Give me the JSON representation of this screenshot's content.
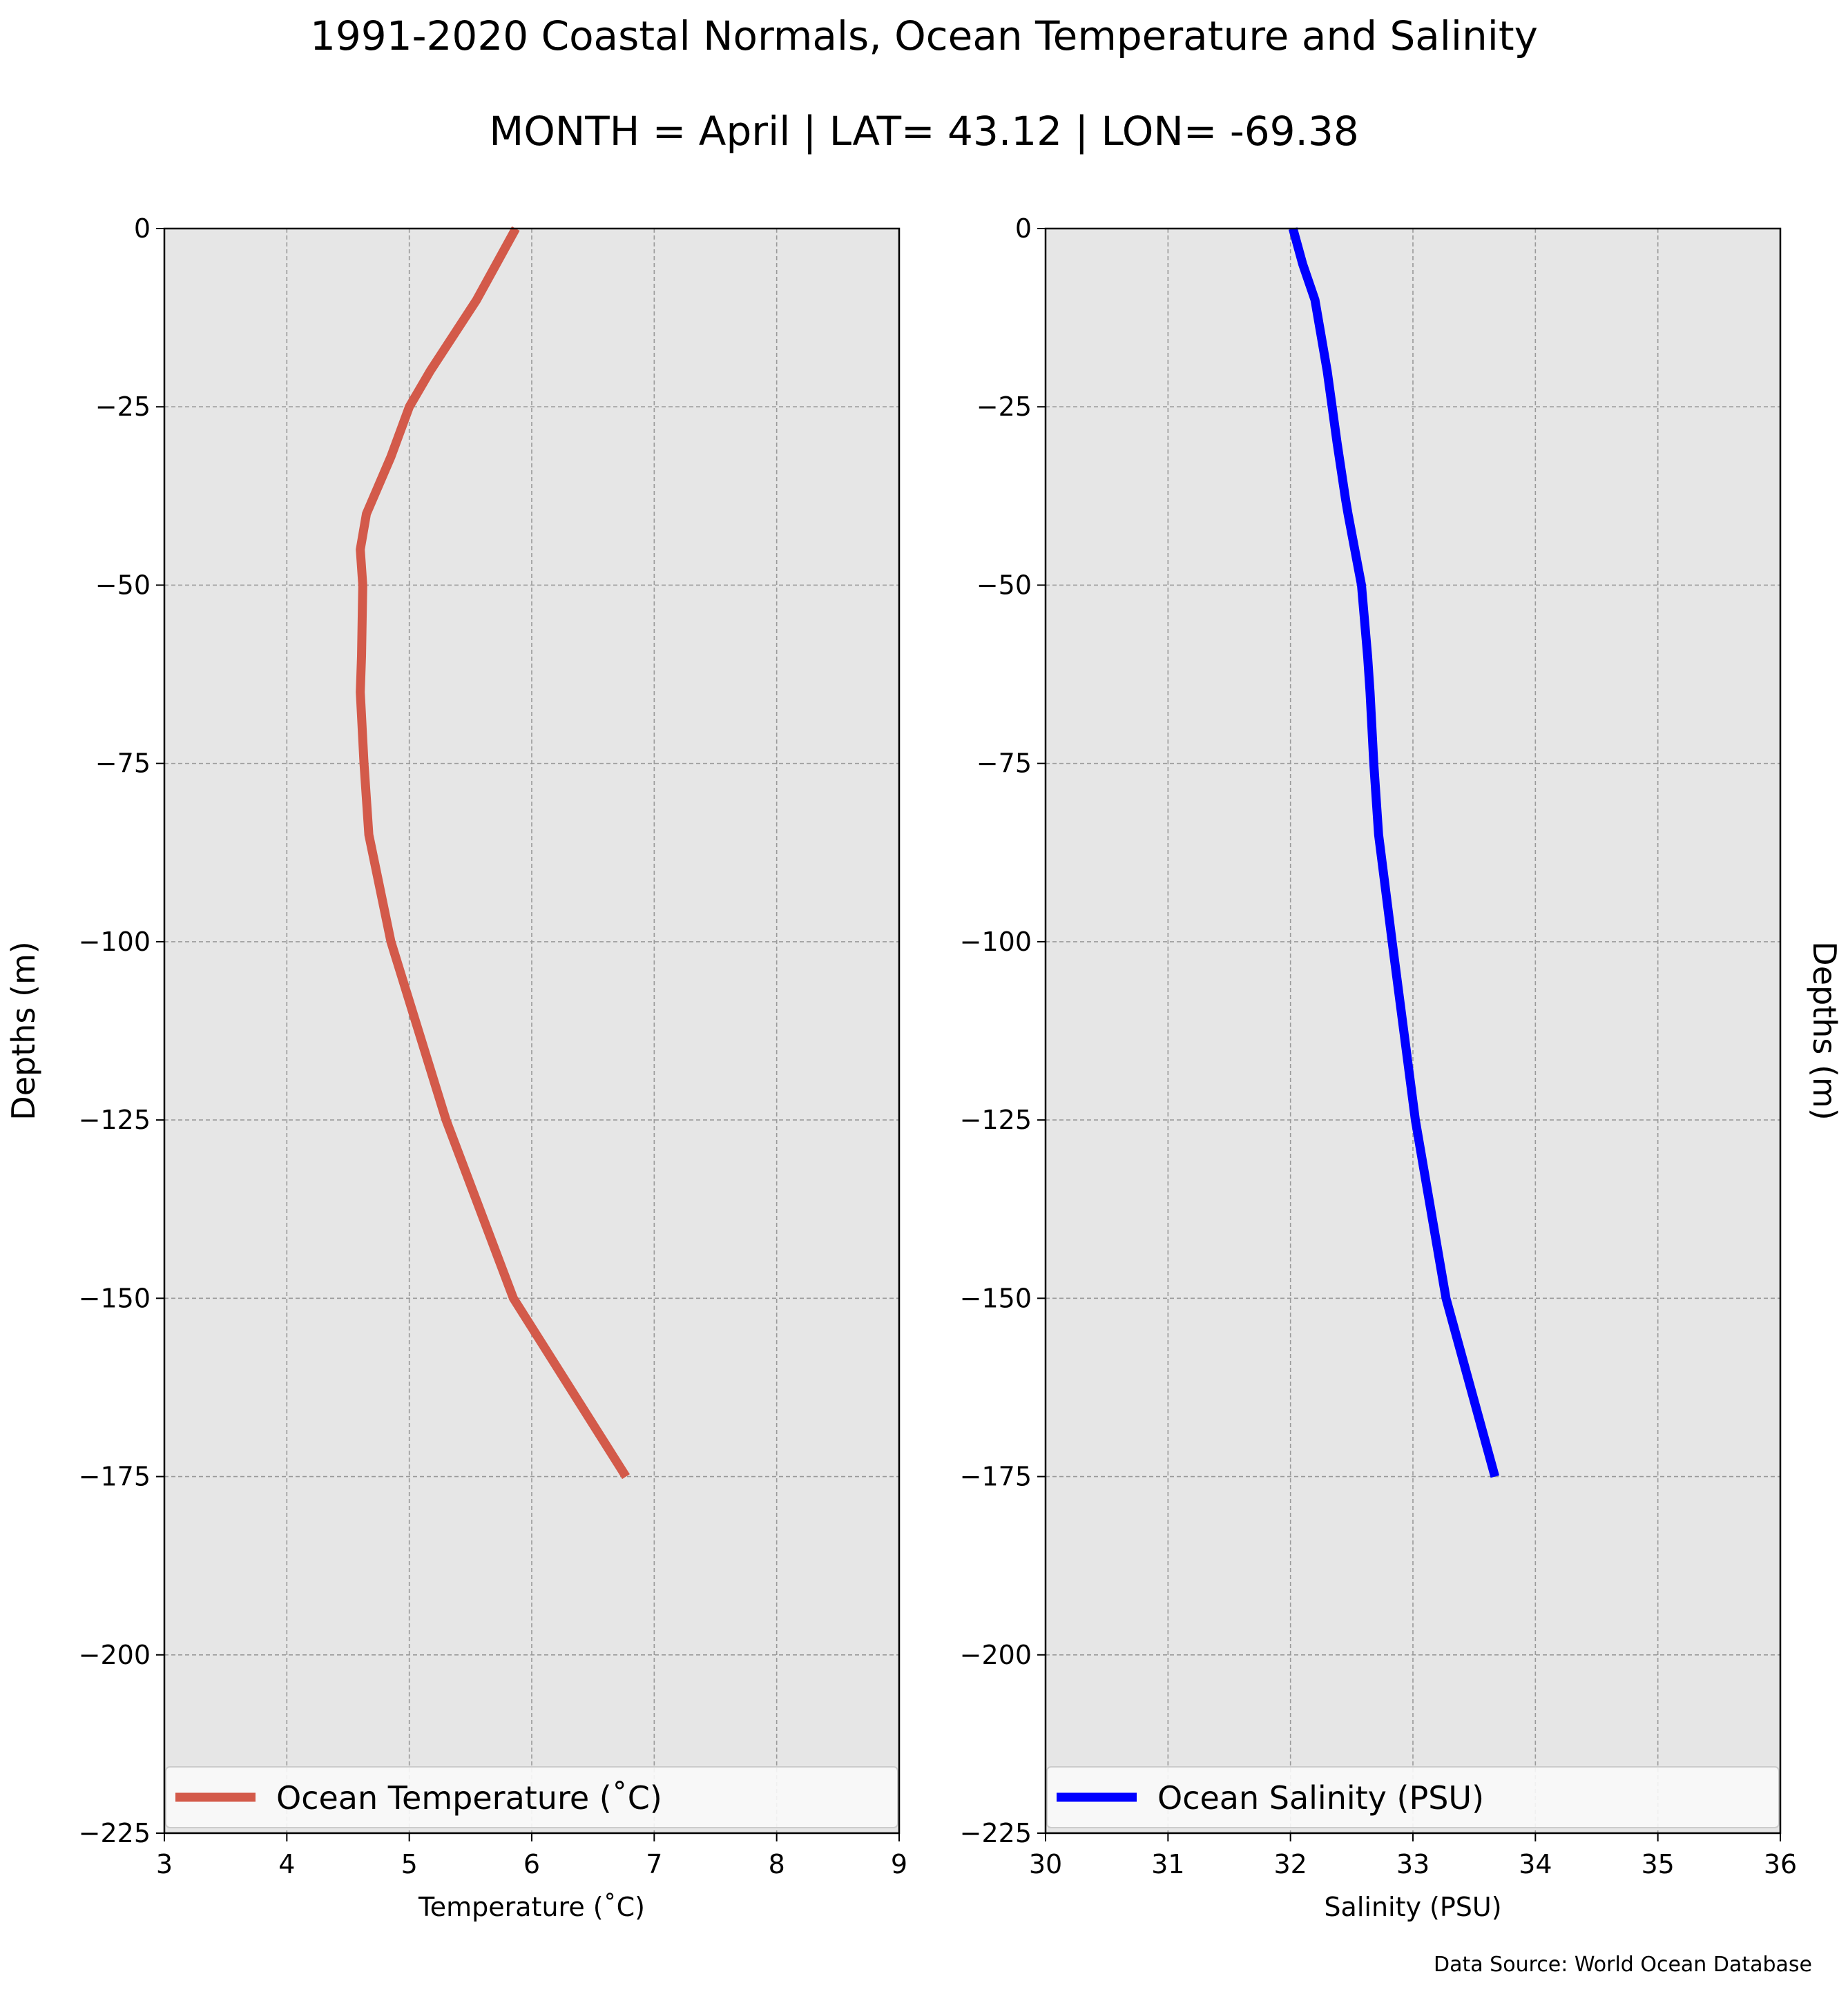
{
  "title": "1991-2020 Coastal Normals, Ocean Temperature and Salinity",
  "subtitle": "MONTH = April | LAT= 43.12 | LON= -69.38",
  "source": "Data Source: World Ocean Database",
  "colors": {
    "temperature": "#d35a4a",
    "salinity": "#0000ff",
    "plot_bg": "#e6e6e6",
    "grid": "#9a9a9a"
  },
  "chart_data": [
    {
      "type": "line",
      "xlabel": "Temperature ($^\\circ$C)",
      "xlabel_display": "Temperature (˚C)",
      "ylabel": "Depths (m)",
      "xlim": [
        3,
        9
      ],
      "ylim": [
        -225,
        0
      ],
      "xticks": [
        3,
        4,
        5,
        6,
        7,
        8,
        9
      ],
      "yticks": [
        0,
        -25,
        -50,
        -75,
        -100,
        -125,
        -150,
        -175,
        -200,
        -225
      ],
      "ytick_labels": [
        "0",
        "−25",
        "−50",
        "−75",
        "−100",
        "−125",
        "−150",
        "−175",
        "−200",
        "−225"
      ],
      "grid": true,
      "legend_position": "lower center",
      "series": [
        {
          "name": "Ocean Temperature (˚C)",
          "color": "#d35a4a",
          "x": [
            5.87,
            5.55,
            5.17,
            5.0,
            4.85,
            4.65,
            4.6,
            4.62,
            4.61,
            4.6,
            4.63,
            4.67,
            4.85,
            5.3,
            5.85,
            6.77
          ],
          "y": [
            0,
            -10,
            -20,
            -25,
            -32,
            -40,
            -45,
            -50,
            -60,
            -65,
            -75,
            -85,
            -100,
            -125,
            -150,
            -175
          ]
        }
      ]
    },
    {
      "type": "line",
      "xlabel": "Salinity (PSU)",
      "ylabel": "Depths (m)",
      "xlim": [
        30,
        36
      ],
      "ylim": [
        -225,
        0
      ],
      "xticks": [
        30,
        31,
        32,
        33,
        34,
        35,
        36
      ],
      "yticks": [
        0,
        -25,
        -50,
        -75,
        -100,
        -125,
        -150,
        -175,
        -200,
        -225
      ],
      "ytick_labels": [
        "0",
        "−25",
        "−50",
        "−75",
        "−100",
        "−125",
        "−150",
        "−175",
        "−200",
        "−225"
      ],
      "grid": true,
      "legend_position": "lower center",
      "series": [
        {
          "name": "Ocean Salinity (PSU)",
          "color": "#0000ff",
          "x": [
            32.02,
            32.1,
            32.2,
            32.3,
            32.38,
            32.45,
            32.47,
            32.58,
            32.63,
            32.65,
            32.68,
            32.72,
            32.83,
            33.02,
            33.27,
            33.67
          ],
          "y": [
            0,
            -5,
            -10,
            -20,
            -30,
            -38,
            -40,
            -50,
            -60,
            -65,
            -75,
            -85,
            -100,
            -125,
            -150,
            -175
          ]
        }
      ]
    }
  ]
}
